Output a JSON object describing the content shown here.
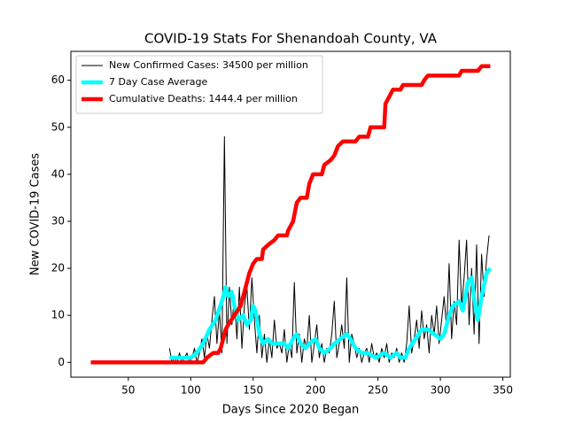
{
  "chart_data": {
    "type": "line",
    "title": "COVID-19 Stats For Shenandoah County, VA",
    "x_label": "Days Since 2020 Began",
    "y_label": "New COVID-19 Cases",
    "xlim": [
      4,
      356
    ],
    "ylim": [
      -3.15,
      66.15
    ],
    "xticks": [
      50,
      100,
      150,
      200,
      250,
      300,
      350
    ],
    "yticks": [
      0,
      10,
      20,
      30,
      40,
      50,
      60
    ],
    "legend": "upper left",
    "series": [
      {
        "name": "New Confirmed Cases: 34500 per million",
        "color": "#000000",
        "width": 1,
        "x": [
          83,
          85,
          87,
          89,
          91,
          93,
          95,
          97,
          99,
          101,
          103,
          105,
          107,
          109,
          111,
          113,
          115,
          117,
          119,
          121,
          123,
          125,
          127,
          129,
          131,
          133,
          135,
          137,
          139,
          141,
          143,
          145,
          147,
          149,
          151,
          153,
          155,
          157,
          159,
          161,
          163,
          165,
          167,
          169,
          171,
          173,
          175,
          177,
          179,
          181,
          183,
          185,
          187,
          189,
          191,
          193,
          195,
          197,
          199,
          201,
          203,
          205,
          207,
          209,
          211,
          213,
          215,
          217,
          219,
          221,
          223,
          225,
          227,
          229,
          231,
          233,
          235,
          237,
          239,
          241,
          243,
          245,
          247,
          249,
          251,
          253,
          255,
          257,
          259,
          261,
          263,
          265,
          267,
          269,
          271,
          273,
          275,
          277,
          279,
          281,
          283,
          285,
          287,
          289,
          291,
          293,
          295,
          297,
          299,
          301,
          303,
          305,
          307,
          309,
          311,
          313,
          315,
          317,
          319,
          321,
          323,
          325,
          327,
          329,
          331,
          333,
          335,
          337,
          339
        ],
        "values": [
          3,
          0,
          1,
          0,
          2,
          0,
          1,
          2,
          0,
          1,
          3,
          0,
          2,
          5,
          1,
          6,
          3,
          9,
          14,
          4,
          11,
          2,
          48,
          4,
          16,
          8,
          14,
          5,
          16,
          3,
          12,
          16,
          7,
          18,
          9,
          2,
          10,
          1,
          6,
          0,
          5,
          1,
          9,
          3,
          4,
          2,
          7,
          0,
          4,
          1,
          17,
          2,
          6,
          0,
          5,
          3,
          10,
          0,
          4,
          8,
          1,
          4,
          0,
          3,
          2,
          6,
          13,
          1,
          4,
          8,
          3,
          18,
          0,
          6,
          4,
          1,
          3,
          0,
          2,
          3,
          0,
          4,
          1,
          2,
          0,
          3,
          1,
          4,
          0,
          2,
          1,
          3,
          0,
          2,
          0,
          4,
          12,
          2,
          5,
          9,
          3,
          11,
          5,
          8,
          2,
          10,
          6,
          12,
          4,
          9,
          14,
          7,
          21,
          5,
          13,
          8,
          26,
          12,
          18,
          26,
          8,
          20,
          6,
          25,
          4,
          23,
          14,
          22,
          27
        ]
      },
      {
        "name": "7 Day Case Average",
        "color": "#00ffff",
        "width": 4.5,
        "x": [
          83,
          100,
          105,
          110,
          115,
          120,
          125,
          128,
          130,
          133,
          135,
          138,
          142,
          145,
          148,
          150,
          152,
          155,
          158,
          162,
          165,
          170,
          175,
          178,
          182,
          185,
          188,
          192,
          195,
          200,
          203,
          207,
          212,
          215,
          220,
          225,
          228,
          232,
          237,
          242,
          248,
          255,
          260,
          265,
          268,
          272,
          275,
          280,
          285,
          290,
          295,
          300,
          303,
          307,
          310,
          315,
          318,
          322,
          325,
          328,
          330,
          333,
          337,
          340
        ],
        "values": [
          1,
          1,
          2,
          4,
          7,
          9,
          13,
          16,
          14,
          15,
          12,
          9,
          10,
          8,
          9,
          12,
          11,
          6,
          4,
          5,
          4,
          4,
          4,
          3,
          5,
          6,
          4,
          3,
          4,
          5,
          3,
          2,
          3,
          4,
          5,
          6,
          5,
          3,
          2,
          2,
          1,
          2,
          1,
          2,
          1,
          1,
          3,
          5,
          7,
          7,
          6,
          5,
          6,
          10,
          12,
          13,
          11,
          17,
          18,
          12,
          9,
          14,
          19,
          20
        ]
      },
      {
        "name": "Cumulative Deaths: 1444.4 per million",
        "color": "#ff0000",
        "width": 4.5,
        "x": [
          20,
          110,
          113,
          118,
          122,
          124,
          126,
          128,
          130,
          135,
          140,
          145,
          147,
          150,
          153,
          157,
          158,
          162,
          167,
          170,
          177,
          178,
          182,
          185,
          188,
          193,
          195,
          198,
          205,
          207,
          212,
          215,
          218,
          222,
          232,
          235,
          242,
          244,
          255,
          256,
          258,
          260,
          262,
          268,
          270,
          285,
          287,
          290,
          315,
          317,
          330,
          333,
          340
        ],
        "values": [
          0,
          0,
          1,
          2,
          2,
          3,
          5,
          7,
          8,
          10,
          12,
          17,
          19,
          21,
          22,
          22,
          24,
          25,
          26,
          27,
          27,
          28,
          30,
          34,
          35,
          35,
          38,
          40,
          40,
          42,
          43,
          44,
          46,
          47,
          47,
          48,
          48,
          50,
          50,
          55,
          56,
          57,
          58,
          58,
          59,
          59,
          60,
          61,
          61,
          62,
          62,
          63,
          63
        ]
      }
    ]
  }
}
